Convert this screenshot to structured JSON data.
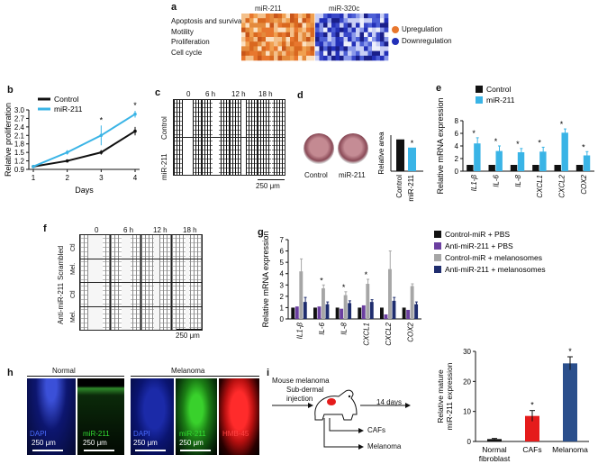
{
  "panels": {
    "a": {
      "label": "a",
      "col1": "miR-211",
      "col2": "miR-320c",
      "rows": [
        "Apoptosis and survival",
        "Motility",
        "Proliferation",
        "Cell cycle"
      ],
      "legend_up": "Upregulation",
      "legend_down": "Downregulation",
      "colors": {
        "up": "#e8772e",
        "down": "#2330b8"
      }
    },
    "b": {
      "label": "b",
      "ylabel": "Relative proliferation",
      "xlabel": "Days",
      "yticks": [
        "0.9",
        "1.2",
        "1.5",
        "1.8",
        "2.1",
        "2.4",
        "2.7",
        "3.0"
      ],
      "xticks": [
        "1",
        "2",
        "3",
        "4"
      ],
      "star": "*"
    },
    "c": {
      "label": "c",
      "times": [
        "0",
        "6 h",
        "12 h",
        "18 h"
      ],
      "row1": "Control",
      "row2": "miR-211",
      "scale": "250 μm"
    },
    "d": {
      "label": "d",
      "ylabel": "Relative area",
      "img1": "Control",
      "img2": "miR-211",
      "cats": [
        "Control",
        "miR-211"
      ],
      "star": "*"
    },
    "e": {
      "label": "e",
      "ylabel": "Relative mRNA expression",
      "star": "*",
      "yticks": [
        "0",
        "2",
        "4",
        "6",
        "8"
      ]
    },
    "f": {
      "label": "f",
      "times": [
        "0",
        "6 h",
        "12 h",
        "18 h"
      ],
      "group1": "Scrambled",
      "group2": "Anti-miR-211",
      "rows": [
        "Ctl",
        "Mel.",
        "Ctl",
        "Mel."
      ],
      "scale": "250 μm"
    },
    "g": {
      "label": "g",
      "ylabel": "Relative mRNA expression",
      "star": "*",
      "yticks": [
        "0",
        "1",
        "2",
        "3",
        "4",
        "5",
        "6",
        "7"
      ]
    },
    "h": {
      "label": "h",
      "group1": "Normal",
      "group2": "Melanoma",
      "stains": [
        "DAPI",
        "miR-211",
        "DAPI",
        "miR-211",
        "HMB-45"
      ],
      "scales": [
        "250 μm",
        "250 μm",
        "250 μm",
        "250 μm"
      ]
    },
    "i": {
      "label": "i",
      "text1": "Mouse melanoma",
      "text2": "Sub-dermal",
      "text3": "injection",
      "days": "14 days",
      "out1": "CAFs",
      "out2": "Melanoma",
      "ylabel1": "Relative mature",
      "ylabel2": "miR-211 expression",
      "yticks": [
        "0",
        "10",
        "20",
        "30"
      ],
      "star": "*"
    }
  },
  "chart_data": [
    {
      "id": "b",
      "type": "line",
      "xlabel": "Days",
      "ylabel": "Relative proliferation",
      "x": [
        1,
        2,
        3,
        4
      ],
      "ylim": [
        0.9,
        3.0
      ],
      "series": [
        {
          "name": "Control",
          "color": "#111111",
          "values": [
            1.0,
            1.2,
            1.5,
            2.25
          ],
          "err": [
            0,
            0.05,
            0.08,
            0.15
          ]
        },
        {
          "name": "miR-211",
          "color": "#3ab4e6",
          "values": [
            1.0,
            1.5,
            2.1,
            2.85
          ],
          "err": [
            0,
            0.08,
            0.35,
            0.12
          ]
        }
      ],
      "significant_x": [
        3,
        4
      ]
    },
    {
      "id": "d",
      "type": "bar",
      "ylabel": "Relative area",
      "categories": [
        "Control",
        "miR-211"
      ],
      "values": [
        0.97,
        0.72
      ],
      "colors": [
        "#111111",
        "#3ab4e6"
      ],
      "ylim": [
        0,
        1.1
      ]
    },
    {
      "id": "e",
      "type": "bar",
      "ylabel": "Relative mRNA expression",
      "categories": [
        "IL1-β",
        "IL-6",
        "IL-8",
        "CXCL1",
        "CXCL2",
        "COX2"
      ],
      "ylim": [
        0,
        8
      ],
      "series": [
        {
          "name": "Control",
          "color": "#111111",
          "values": [
            1,
            1,
            1,
            1,
            1,
            1
          ]
        },
        {
          "name": "miR-211",
          "color": "#3ab4e6",
          "values": [
            4.4,
            3.2,
            3.0,
            3.1,
            6.1,
            2.5
          ],
          "err": [
            0.9,
            0.8,
            0.6,
            0.7,
            0.6,
            0.6
          ]
        }
      ]
    },
    {
      "id": "g",
      "type": "bar",
      "ylabel": "Relative mRNA expression",
      "categories": [
        "IL1-β",
        "IL-6",
        "IL-8",
        "CXCL1",
        "CXCL2",
        "COX2"
      ],
      "ylim": [
        0,
        7
      ],
      "series": [
        {
          "name": "Control-miR + PBS",
          "color": "#111111",
          "values": [
            1,
            1,
            1,
            1,
            1,
            1
          ]
        },
        {
          "name": "Anti-miR-211 + PBS",
          "color": "#6b3fa0",
          "values": [
            1.1,
            1.1,
            0.9,
            1.2,
            0.4,
            0.8
          ]
        },
        {
          "name": "Control-miR + melanosomes",
          "color": "#a6a6a6",
          "values": [
            4.2,
            2.7,
            2.1,
            3.1,
            4.4,
            2.9
          ],
          "err": [
            1.1,
            0.3,
            0.3,
            0.4,
            1.6,
            0.2
          ]
        },
        {
          "name": "Anti-miR-211 + melanosomes",
          "color": "#1f2d6e",
          "values": [
            1.5,
            1.3,
            1.4,
            1.5,
            1.6,
            1.3
          ],
          "err": [
            0.4,
            0.2,
            0.2,
            0.2,
            0.3,
            0.2
          ]
        }
      ]
    },
    {
      "id": "i",
      "type": "bar",
      "ylabel": "Relative mature miR-211 expression",
      "categories": [
        "Normal fibroblast",
        "CAFs",
        "Melanoma"
      ],
      "values": [
        0.8,
        8.5,
        26
      ],
      "err": [
        0.2,
        1.8,
        2.2
      ],
      "colors": [
        "#111111",
        "#e51b1b",
        "#2b4f8c"
      ],
      "ylim": [
        0,
        30
      ]
    }
  ]
}
